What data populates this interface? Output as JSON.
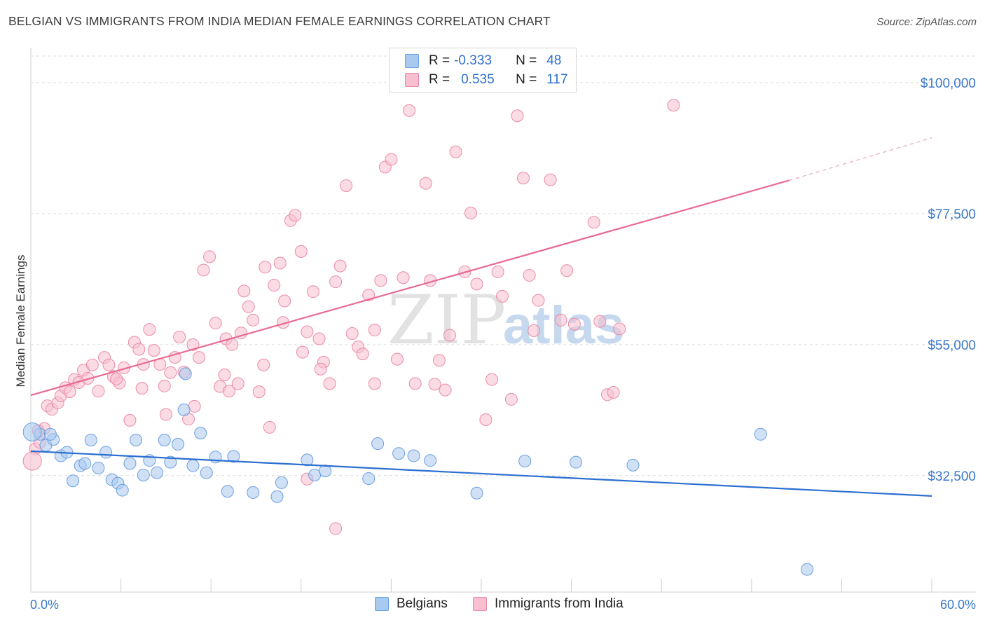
{
  "title": "BELGIAN VS IMMIGRANTS FROM INDIA MEDIAN FEMALE EARNINGS CORRELATION CHART",
  "source": "Source: ZipAtlas.com",
  "watermark": {
    "zip": "ZIP",
    "atlas": "atlas"
  },
  "legend": {
    "rows": [
      {
        "r_label": "R =",
        "r_value": "-0.333",
        "n_label": "N =",
        "n_value": "48",
        "color": "#a9c9ef",
        "border": "#6a9fe0"
      },
      {
        "r_label": "R =",
        "r_value": "0.535",
        "n_label": "N =",
        "n_value": "117",
        "color": "#f7bfd0",
        "border": "#ea8aa6"
      }
    ]
  },
  "bottom_legend": {
    "belgians": "Belgians",
    "india": "Immigrants from India"
  },
  "chart_data": {
    "type": "scatter",
    "title": "BELGIAN VS IMMIGRANTS FROM INDIA MEDIAN FEMALE EARNINGS CORRELATION CHART",
    "xlabel": "",
    "ylabel": "Median Female Earnings",
    "xlim": [
      0,
      60
    ],
    "ylim": [
      12500,
      106000
    ],
    "x_tick_labels": [
      "0.0%",
      "60.0%"
    ],
    "y_ticks": [
      32500,
      55000,
      77500,
      100000
    ],
    "y_tick_labels": [
      "$32,500",
      "$55,000",
      "$77,500",
      "$100,000"
    ],
    "grid": "horizontal dashed",
    "legend_position": "top-center",
    "series": [
      {
        "name": "Belgians",
        "color": "#6a9fe0",
        "fill": "#a9c9ef",
        "trend": {
          "x0": 0,
          "y0": 36700,
          "x1": 60,
          "y1": 29000
        },
        "points": [
          [
            0.6,
            39600
          ],
          [
            1.0,
            37700
          ],
          [
            1.5,
            38700
          ],
          [
            2.0,
            35900
          ],
          [
            2.4,
            36500
          ],
          [
            2.8,
            31600
          ],
          [
            3.3,
            34200
          ],
          [
            3.6,
            34600
          ],
          [
            4.0,
            38600
          ],
          [
            4.5,
            33800
          ],
          [
            5.0,
            36500
          ],
          [
            5.4,
            31800
          ],
          [
            5.8,
            31200
          ],
          [
            6.1,
            30000
          ],
          [
            6.6,
            34600
          ],
          [
            7.0,
            38600
          ],
          [
            7.5,
            32600
          ],
          [
            7.9,
            35100
          ],
          [
            8.4,
            33000
          ],
          [
            8.9,
            38600
          ],
          [
            9.3,
            34800
          ],
          [
            9.8,
            37900
          ],
          [
            10.3,
            50000
          ],
          [
            10.8,
            34200
          ],
          [
            11.3,
            39800
          ],
          [
            11.7,
            33000
          ],
          [
            12.3,
            35700
          ],
          [
            13.1,
            29800
          ],
          [
            13.5,
            35800
          ],
          [
            14.8,
            29600
          ],
          [
            16.4,
            28900
          ],
          [
            16.7,
            31300
          ],
          [
            18.4,
            35200
          ],
          [
            18.9,
            32600
          ],
          [
            19.6,
            33300
          ],
          [
            22.5,
            32000
          ],
          [
            23.1,
            38000
          ],
          [
            24.5,
            36300
          ],
          [
            25.5,
            35900
          ],
          [
            26.6,
            35100
          ],
          [
            29.7,
            29500
          ],
          [
            32.9,
            35000
          ],
          [
            36.3,
            34800
          ],
          [
            40.1,
            34300
          ],
          [
            48.6,
            39600
          ],
          [
            51.7,
            16400
          ],
          [
            10.2,
            43800
          ],
          [
            1.3,
            39600
          ]
        ]
      },
      {
        "name": "Immigrants from India",
        "color": "#ea8aa6",
        "fill": "#f7bfd0",
        "trend": {
          "x0": 0,
          "y0": 46300,
          "x1": 50.5,
          "y1": 83200
        },
        "trend_ext": {
          "x0": 50.5,
          "y0": 83200,
          "x1": 60,
          "y1": 90500
        },
        "points": [
          [
            0.3,
            37100
          ],
          [
            0.6,
            38200
          ],
          [
            0.9,
            40600
          ],
          [
            1.1,
            44500
          ],
          [
            1.4,
            43900
          ],
          [
            1.8,
            45000
          ],
          [
            2.0,
            46200
          ],
          [
            2.3,
            47600
          ],
          [
            2.6,
            46900
          ],
          [
            2.9,
            49000
          ],
          [
            3.2,
            48500
          ],
          [
            3.5,
            50600
          ],
          [
            3.8,
            49200
          ],
          [
            4.1,
            51500
          ],
          [
            4.5,
            47000
          ],
          [
            4.9,
            52800
          ],
          [
            5.2,
            51500
          ],
          [
            5.5,
            49500
          ],
          [
            5.9,
            48400
          ],
          [
            6.2,
            51000
          ],
          [
            6.6,
            42000
          ],
          [
            6.9,
            55400
          ],
          [
            7.2,
            54200
          ],
          [
            7.5,
            51600
          ],
          [
            7.9,
            57600
          ],
          [
            8.2,
            54000
          ],
          [
            8.6,
            51600
          ],
          [
            8.9,
            47900
          ],
          [
            9.3,
            50200
          ],
          [
            9.6,
            52800
          ],
          [
            9.9,
            56300
          ],
          [
            10.2,
            50300
          ],
          [
            10.5,
            42200
          ],
          [
            10.8,
            55000
          ],
          [
            11.2,
            52800
          ],
          [
            11.5,
            67800
          ],
          [
            11.9,
            70100
          ],
          [
            12.3,
            58700
          ],
          [
            12.6,
            47800
          ],
          [
            13.0,
            56000
          ],
          [
            13.4,
            55000
          ],
          [
            13.8,
            48300
          ],
          [
            14.2,
            64200
          ],
          [
            14.5,
            61500
          ],
          [
            14.8,
            59200
          ],
          [
            15.2,
            46900
          ],
          [
            15.5,
            51500
          ],
          [
            15.9,
            40800
          ],
          [
            16.2,
            65200
          ],
          [
            16.6,
            69000
          ],
          [
            16.9,
            62500
          ],
          [
            17.3,
            76300
          ],
          [
            17.6,
            77200
          ],
          [
            18.0,
            71000
          ],
          [
            18.4,
            57200
          ],
          [
            18.8,
            64100
          ],
          [
            19.2,
            56000
          ],
          [
            19.5,
            52000
          ],
          [
            19.9,
            48300
          ],
          [
            20.3,
            65800
          ],
          [
            20.6,
            68500
          ],
          [
            21.0,
            82300
          ],
          [
            21.4,
            56900
          ],
          [
            21.8,
            54600
          ],
          [
            22.1,
            53400
          ],
          [
            22.5,
            63500
          ],
          [
            22.9,
            57500
          ],
          [
            23.3,
            66000
          ],
          [
            23.6,
            85500
          ],
          [
            24.0,
            86800
          ],
          [
            24.4,
            52500
          ],
          [
            24.8,
            66500
          ],
          [
            25.2,
            95200
          ],
          [
            25.6,
            48300
          ],
          [
            26.3,
            82700
          ],
          [
            26.6,
            66000
          ],
          [
            27.2,
            52300
          ],
          [
            27.6,
            47200
          ],
          [
            28.3,
            88100
          ],
          [
            28.9,
            67500
          ],
          [
            29.3,
            77600
          ],
          [
            29.7,
            65400
          ],
          [
            30.3,
            42100
          ],
          [
            30.7,
            49000
          ],
          [
            31.4,
            63300
          ],
          [
            32.0,
            45600
          ],
          [
            32.4,
            94300
          ],
          [
            32.8,
            83600
          ],
          [
            33.2,
            66900
          ],
          [
            33.8,
            62600
          ],
          [
            34.6,
            83300
          ],
          [
            35.3,
            59200
          ],
          [
            35.7,
            67700
          ],
          [
            36.2,
            58500
          ],
          [
            37.5,
            76000
          ],
          [
            37.9,
            59000
          ],
          [
            38.4,
            46400
          ],
          [
            38.8,
            46800
          ],
          [
            39.2,
            57700
          ],
          [
            42.8,
            96100
          ],
          [
            9.0,
            43000
          ],
          [
            10.9,
            44400
          ],
          [
            12.9,
            49800
          ],
          [
            14.0,
            57000
          ],
          [
            16.8,
            58800
          ],
          [
            18.1,
            53700
          ],
          [
            19.3,
            50800
          ],
          [
            22.9,
            48300
          ],
          [
            27.9,
            56600
          ],
          [
            31.1,
            67500
          ],
          [
            33.5,
            57400
          ],
          [
            15.6,
            68300
          ],
          [
            18.4,
            31900
          ],
          [
            20.3,
            23400
          ],
          [
            26.9,
            48200
          ],
          [
            13.2,
            47000
          ],
          [
            7.4,
            47500
          ],
          [
            5.7,
            49100
          ],
          [
            0.5,
            40200
          ]
        ]
      }
    ]
  }
}
